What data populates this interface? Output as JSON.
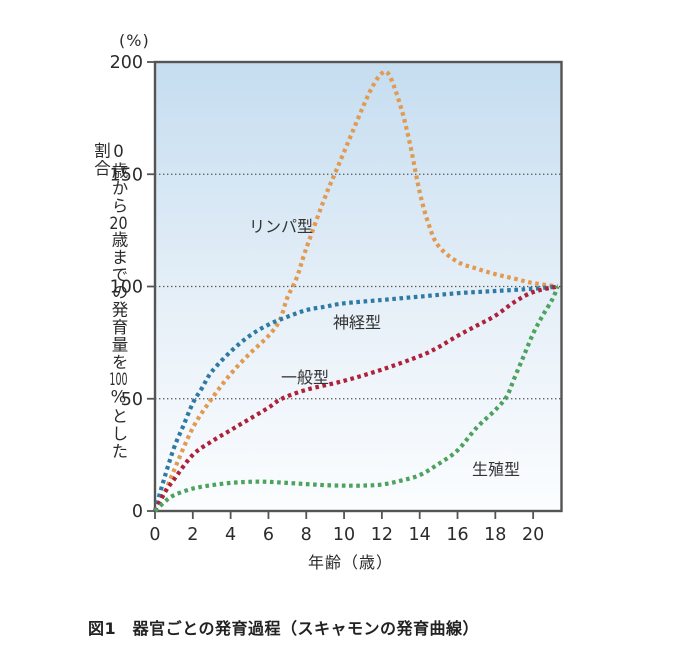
{
  "figure": {
    "unit_label": "(%)",
    "y_axis_title": "0歳から20歳までの発育量を100%とした割合",
    "y_axis_title_parts": [
      {
        "text": "0歳から",
        "tcy": false
      },
      {
        "text": "20",
        "tcy": true
      },
      {
        "text": "歳までの発育量を",
        "tcy": false
      },
      {
        "text": "100",
        "tcy": true
      },
      {
        "text": "%とした割合",
        "tcy": false
      }
    ],
    "x_axis_label": "年齢（歳）",
    "caption": "図1　器官ごとの発育過程（スキャモンの発育曲線）"
  },
  "colors": {
    "plot_bg_top": "#c5ddf0",
    "plot_bg_mid": "#e7f0f8",
    "plot_bg_bottom": "#fbfdff",
    "axis": "#545454",
    "grid": "#555555",
    "text": "#2b2b2b",
    "lymphoid": "#e09a52",
    "neural": "#2f7aa3",
    "general": "#ae2138",
    "genital": "#4da25e"
  },
  "chart_data": {
    "type": "line",
    "title": "器官ごとの発育過程（スキャモンの発育曲線）",
    "xlabel": "年齢（歳）",
    "ylabel": "0歳から20歳までの発育量を100%とした割合",
    "unit": "%",
    "xlim": [
      0,
      21.5
    ],
    "ylim": [
      0,
      200
    ],
    "x_ticks": [
      0,
      2,
      4,
      6,
      8,
      10,
      12,
      14,
      16,
      18,
      20
    ],
    "y_ticks": [
      0,
      50,
      100,
      150,
      200
    ],
    "gridlines_y": [
      50,
      100,
      150
    ],
    "grid": "dotted horizontal",
    "line_style": "dotted",
    "legend_position": "inline-labels",
    "series": [
      {
        "name": "リンパ型",
        "color": "#e09a52",
        "points": [
          [
            0,
            0
          ],
          [
            0.5,
            8
          ],
          [
            1,
            18
          ],
          [
            2,
            37
          ],
          [
            3,
            50
          ],
          [
            4,
            61
          ],
          [
            5,
            70
          ],
          [
            6,
            78
          ],
          [
            6.6,
            85
          ],
          [
            7,
            95
          ],
          [
            7.5,
            104
          ],
          [
            8,
            117
          ],
          [
            9,
            140
          ],
          [
            9.5,
            150
          ],
          [
            10,
            160
          ],
          [
            10.5,
            170
          ],
          [
            11,
            180
          ],
          [
            11.5,
            189
          ],
          [
            12,
            195
          ],
          [
            12.4,
            194
          ],
          [
            13,
            180
          ],
          [
            13.5,
            163
          ],
          [
            14,
            142
          ],
          [
            14.5,
            127
          ],
          [
            15,
            118
          ],
          [
            16,
            111
          ],
          [
            17,
            108
          ],
          [
            18,
            105.5
          ],
          [
            19,
            103.5
          ],
          [
            20,
            101.5
          ],
          [
            21.3,
            100
          ]
        ]
      },
      {
        "name": "神経型",
        "color": "#2f7aa3",
        "points": [
          [
            0,
            0
          ],
          [
            0.4,
            12
          ],
          [
            1,
            28
          ],
          [
            1.5,
            38
          ],
          [
            2,
            48
          ],
          [
            2.5,
            55
          ],
          [
            3,
            62
          ],
          [
            4,
            71
          ],
          [
            5,
            78
          ],
          [
            6,
            83
          ],
          [
            7,
            86.5
          ],
          [
            8,
            89.5
          ],
          [
            9,
            91
          ],
          [
            10,
            92.5
          ],
          [
            12,
            94
          ],
          [
            14,
            95.5
          ],
          [
            16,
            97
          ],
          [
            18,
            98
          ],
          [
            20,
            99
          ],
          [
            21.3,
            100
          ]
        ]
      },
      {
        "name": "一般型",
        "color": "#ae2138",
        "points": [
          [
            0,
            0
          ],
          [
            0.5,
            8
          ],
          [
            1,
            14
          ],
          [
            2,
            25
          ],
          [
            3,
            31
          ],
          [
            4,
            36
          ],
          [
            5,
            41
          ],
          [
            6,
            46
          ],
          [
            6.7,
            50
          ],
          [
            8,
            54
          ],
          [
            10,
            58
          ],
          [
            12,
            63
          ],
          [
            14,
            69
          ],
          [
            15,
            73
          ],
          [
            16,
            78
          ],
          [
            17,
            82.5
          ],
          [
            18,
            87
          ],
          [
            19,
            93
          ],
          [
            20,
            97.5
          ],
          [
            21.3,
            100
          ]
        ]
      },
      {
        "name": "生殖型",
        "color": "#4da25e",
        "points": [
          [
            0,
            0
          ],
          [
            0.5,
            4
          ],
          [
            1,
            7
          ],
          [
            2,
            10
          ],
          [
            3,
            11.5
          ],
          [
            4,
            12.5
          ],
          [
            5,
            13
          ],
          [
            6,
            13
          ],
          [
            7,
            12.5
          ],
          [
            8,
            12
          ],
          [
            9,
            11.5
          ],
          [
            10,
            11.3
          ],
          [
            11,
            11.3
          ],
          [
            12,
            11.8
          ],
          [
            13,
            13.5
          ],
          [
            14,
            16
          ],
          [
            15,
            21
          ],
          [
            16,
            27
          ],
          [
            17,
            37
          ],
          [
            18,
            45
          ],
          [
            18.6,
            51
          ],
          [
            19,
            59
          ],
          [
            19.5,
            69
          ],
          [
            20,
            79
          ],
          [
            20.5,
            87
          ],
          [
            21,
            94
          ],
          [
            21.3,
            100
          ]
        ]
      }
    ]
  }
}
